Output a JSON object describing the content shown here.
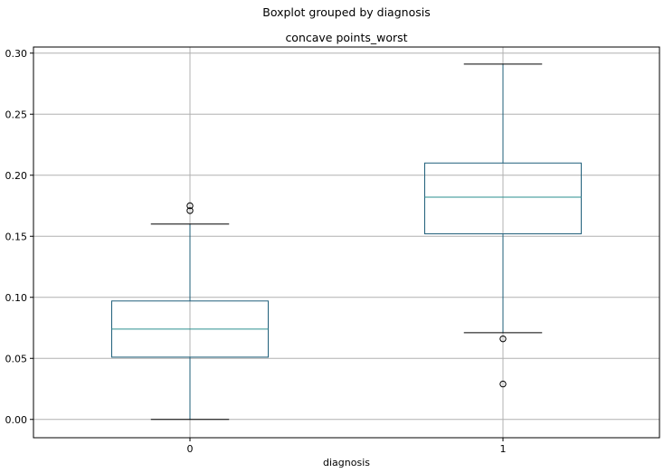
{
  "chart_data": {
    "type": "boxplot",
    "suptitle": "Boxplot grouped by diagnosis",
    "title": "concave points_worst",
    "xlabel": "diagnosis",
    "ylabel": "",
    "ylim": [
      -0.015,
      0.305
    ],
    "xlim": [
      0.5,
      2.5
    ],
    "yticks": [
      "0.00",
      "0.05",
      "0.10",
      "0.15",
      "0.20",
      "0.25",
      "0.30"
    ],
    "grid": true,
    "categories": [
      "0",
      "1"
    ],
    "boxes": [
      {
        "category": "0",
        "whisker_low": 0.0,
        "q1": 0.051,
        "median": 0.074,
        "q3": 0.097,
        "whisker_high": 0.16,
        "outliers": [
          0.171,
          0.175
        ]
      },
      {
        "category": "1",
        "whisker_low": 0.071,
        "q1": 0.152,
        "median": 0.182,
        "q3": 0.21,
        "whisker_high": 0.291,
        "outliers": [
          0.066,
          0.029
        ]
      }
    ],
    "colors": {
      "box": "#1f5f7a",
      "median": "#2a8f8f",
      "grid": "#b0b0b0",
      "axes": "#000000"
    }
  }
}
